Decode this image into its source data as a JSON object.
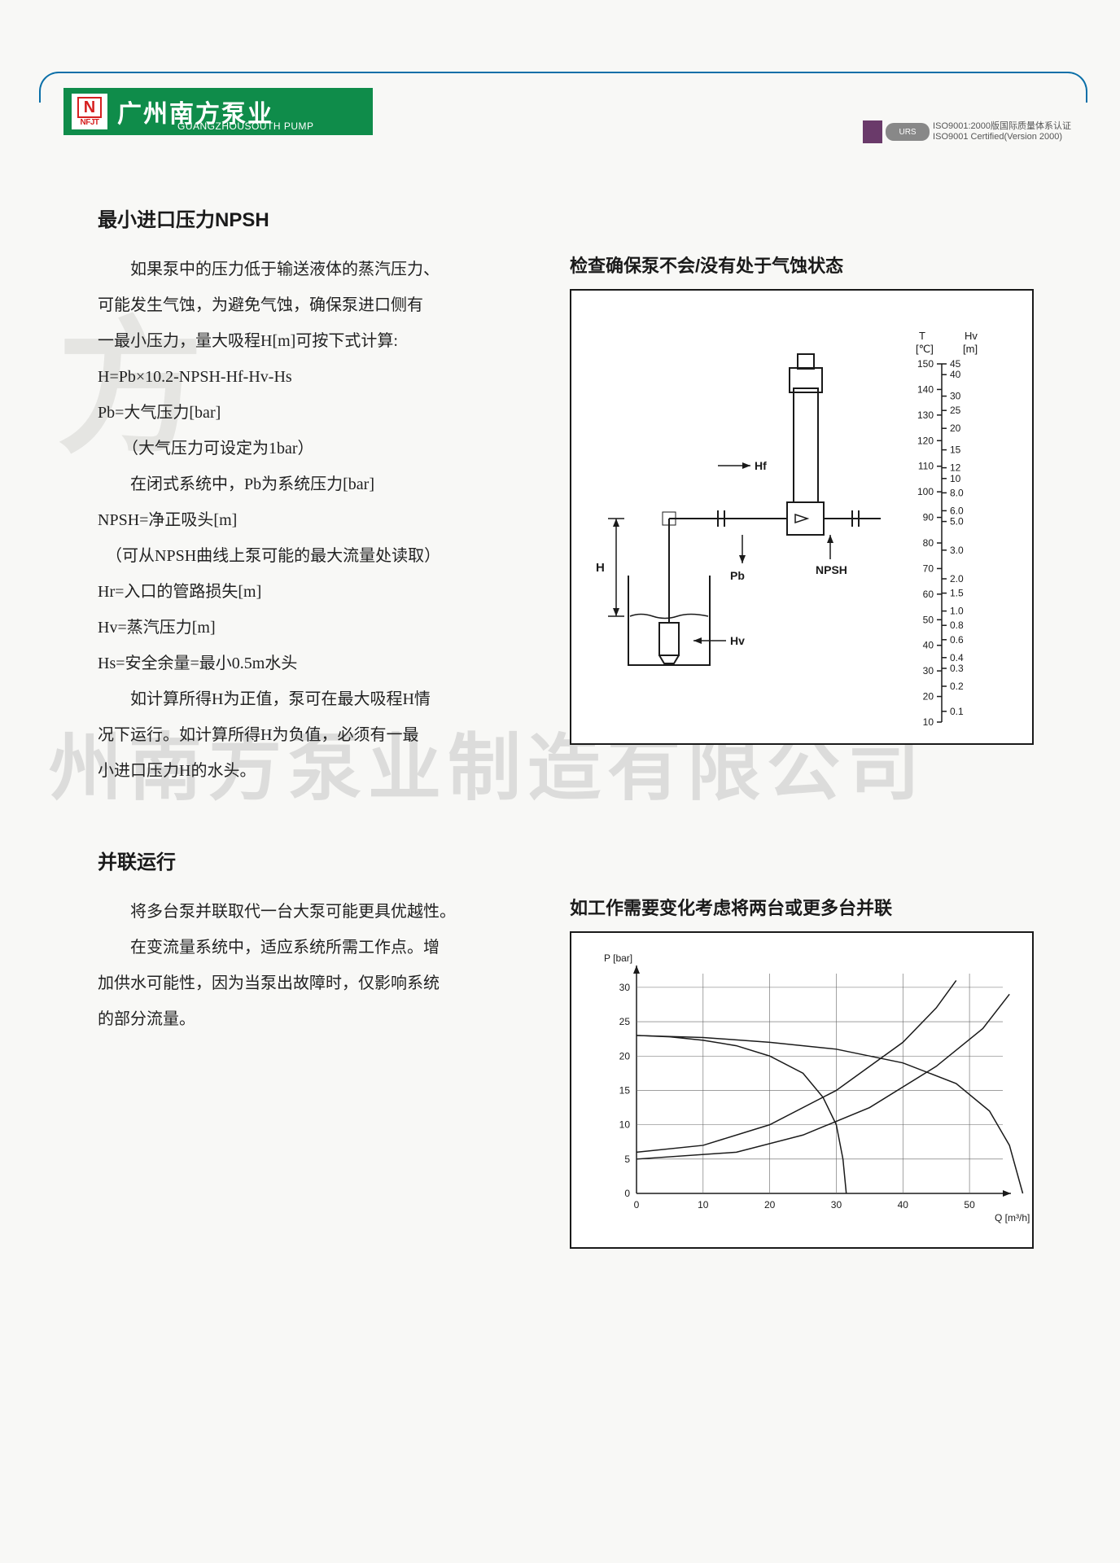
{
  "header": {
    "logo_letter": "N",
    "logo_sub": "NFJT",
    "brand_cn": "广州南方泵业",
    "brand_en": "GUANGZHOUSOUTH PUMP",
    "iso_urs": "URS",
    "iso_line1": "ISO9001:2000版国际质量体系认证",
    "iso_line2": "ISO9001 Certified(Version 2000)"
  },
  "watermark": {
    "text1": "州南方泵业制造有限公司",
    "text2": "业",
    "text3": "方"
  },
  "section1": {
    "title": "最小进口压力NPSH",
    "para_lines": [
      "　　如果泵中的压力低于输送液体的蒸汽压力、",
      "可能发生气蚀，为避免气蚀，确保泵进口侧有",
      "一最小压力，量大吸程H[m]可按下式计算:",
      "H=Pb×10.2-NPSH-Hf-Hv-Hs",
      "Pb=大气压力[bar]",
      "　　（大气压力可设定为1bar）",
      "　　在闭式系统中，Pb为系统压力[bar]",
      "NPSH=净正吸头[m]",
      "　（可从NPSH曲线上泵可能的最大流量处读取）",
      "Hr=入口的管路损失[m]",
      "Hv=蒸汽压力[m]",
      "Hs=安全余量=最小0.5m水头",
      "　　如计算所得H为正值，泵可在最大吸程H情",
      "况下运行。如计算所得H为负值，必须有一最",
      "小进口压力H的水头。"
    ],
    "fig_title": "检查确保泵不会/没有处于气蚀状态",
    "diagram": {
      "labels": {
        "H": "H",
        "Hf": "Hf",
        "Pb": "Pb",
        "Hv": "Hv",
        "NPSH": "NPSH",
        "T_head": "T\n[℃]",
        "Hv_head": "Hv\n[m]"
      },
      "T_ticks": [
        150,
        140,
        130,
        120,
        110,
        100,
        90,
        80,
        70,
        60,
        50,
        40,
        30,
        20,
        10
      ],
      "Hv_ticks": [
        "45",
        "40",
        "30",
        "25",
        "20",
        "15",
        "12",
        "10",
        "8.0",
        "6.0",
        "5.0",
        "3.0",
        "2.0",
        "1.5",
        "1.0",
        "0.8",
        "0.6",
        "0.4",
        "0.3",
        "0.2",
        "0.1"
      ],
      "line_color": "#1a1a1a",
      "line_width": 2,
      "font_size": 13
    }
  },
  "section2": {
    "title": "并联运行",
    "para_lines": [
      "　　将多台泵并联取代一台大泵可能更具优越性。",
      "　　在变流量系统中，适应系统所需工作点。增",
      "加供水可能性，因为当泵出故障时，仅影响系统",
      "的部分流量。"
    ],
    "fig_title": "如工作需要变化考虑将两台或更多台并联",
    "chart": {
      "type": "line",
      "xlabel": "Q [m³/h]",
      "ylabel": "P [bar]",
      "xlim": [
        0,
        55
      ],
      "ylim": [
        0,
        32
      ],
      "xticks": [
        0,
        10,
        20,
        30,
        40,
        50
      ],
      "yticks": [
        0,
        5,
        10,
        15,
        20,
        25,
        30
      ],
      "grid_color": "#666",
      "axis_color": "#1a1a1a",
      "line_color": "#1a1a1a",
      "line_width": 1.5,
      "font_size": 12,
      "series": [
        {
          "name": "pump1",
          "points": [
            [
              0,
              23
            ],
            [
              5,
              22.8
            ],
            [
              10,
              22.3
            ],
            [
              15,
              21.5
            ],
            [
              20,
              20
            ],
            [
              25,
              17.5
            ],
            [
              28,
              14
            ],
            [
              30,
              10
            ],
            [
              31,
              5
            ],
            [
              31.5,
              0
            ]
          ]
        },
        {
          "name": "pump2_parallel",
          "points": [
            [
              0,
              23
            ],
            [
              10,
              22.7
            ],
            [
              20,
              22
            ],
            [
              30,
              21
            ],
            [
              40,
              19
            ],
            [
              48,
              16
            ],
            [
              53,
              12
            ],
            [
              56,
              7
            ],
            [
              58,
              0
            ]
          ]
        },
        {
          "name": "system1",
          "points": [
            [
              0,
              6
            ],
            [
              10,
              7
            ],
            [
              20,
              10
            ],
            [
              30,
              15
            ],
            [
              40,
              22
            ],
            [
              45,
              27
            ],
            [
              48,
              31
            ]
          ]
        },
        {
          "name": "system2",
          "points": [
            [
              0,
              5
            ],
            [
              15,
              6
            ],
            [
              25,
              8.5
            ],
            [
              35,
              12.5
            ],
            [
              45,
              18.5
            ],
            [
              52,
              24
            ],
            [
              56,
              29
            ]
          ]
        }
      ]
    }
  }
}
